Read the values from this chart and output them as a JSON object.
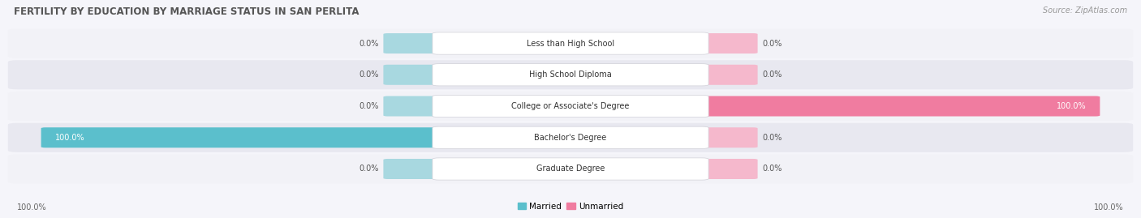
{
  "title": "FERTILITY BY EDUCATION BY MARRIAGE STATUS IN SAN PERLITA",
  "source": "Source: ZipAtlas.com",
  "categories": [
    "Less than High School",
    "High School Diploma",
    "College or Associate's Degree",
    "Bachelor's Degree",
    "Graduate Degree"
  ],
  "married_values": [
    0.0,
    0.0,
    0.0,
    100.0,
    0.0
  ],
  "unmarried_values": [
    0.0,
    0.0,
    100.0,
    0.0,
    0.0
  ],
  "married_color": "#5bbfcc",
  "unmarried_color": "#f07ca0",
  "married_stub_color": "#a8d8e0",
  "unmarried_stub_color": "#f5b8cc",
  "row_bg_even": "#f2f2f7",
  "row_bg_odd": "#e8e8f0",
  "bar_max": 100.0,
  "figsize": [
    14.06,
    2.69
  ],
  "dpi": 100,
  "title_color": "#555555",
  "source_color": "#999999",
  "value_color_dark": "#555555",
  "value_color_white": "#ffffff"
}
